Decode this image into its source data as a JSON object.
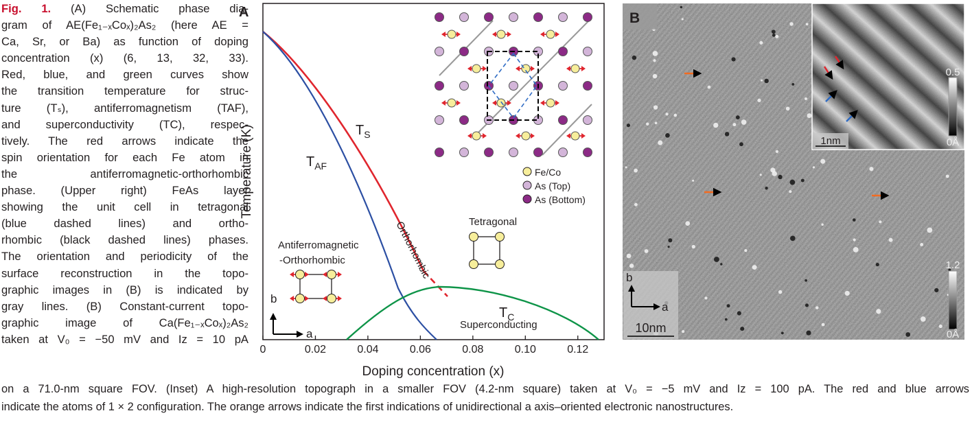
{
  "caption": {
    "label": "Fig. 1.",
    "first_line": "(A) Schematic phase dia-",
    "lines": [
      "gram of AE(Fe₁₋ₓCoₓ)₂As₂ (here AE =",
      "Ca, Sr, or Ba) as function of doping",
      "concentration (x) (6, 13, 32, 33).",
      "Red, blue, and green curves show",
      "the transition temperature for struc-",
      "ture (Tₛ), antiferromagnetism (TAF),",
      "and superconductivity (TC), respec-",
      "tively. The red arrows indicate the",
      "spin orientation for each Fe atom in",
      "the antiferromagnetic-orthorhombic",
      "phase. (Upper right) FeAs layer",
      "showing the unit cell in tetragonal",
      "(blue dashed lines) and ortho-",
      "rhombic (black dashed lines) phases.",
      "The orientation and periodicity of the",
      "surface reconstruction in the topo-",
      "graphic images in (B) is indicated by",
      "gray lines. (B) Constant-current topo-",
      "graphic image of Ca(Fe₁₋ₓCoₓ)₂As₂",
      "taken at V₀ = −50 mV and Iz = 10 pA"
    ],
    "bottom_lines": [
      "on a 71.0-nm square FOV. (Inset) A high-resolution topograph in a smaller FOV (4.2-nm square) taken at V₀ = −5 mV and Iz = 100 pA. The red and blue arrows",
      "indicate the atoms of 1 × 2 configuration. The orange arrows indicate the first indications of unidirectional a axis–oriented electronic nanostructures."
    ]
  },
  "panel_a": {
    "label": "A",
    "xlabel": "Doping concentration (x)",
    "ylabel": "Temperature (K)",
    "xlim": [
      0,
      0.13
    ],
    "xticks": [
      0,
      0.02,
      0.04,
      0.06,
      0.08,
      {
        "value": 0.1,
        "label": "0.10"
      },
      0.12
    ],
    "t_s": {
      "main": "T",
      "sub": "S"
    },
    "t_af": {
      "main": "T",
      "sub": "AF"
    },
    "t_c": {
      "main": "T",
      "sub": "C"
    },
    "orthorhombic": "Orthorhombic",
    "tetragonal": "Tetragonal",
    "afo": [
      "Antiferromagnetic",
      "-Orthorhombic"
    ],
    "superconducting": "Superconducting",
    "legend": [
      "Fe/Co",
      "As (Top)",
      "As (Bottom)"
    ],
    "axis_b": "b",
    "axis_a": "a"
  },
  "panel_b": {
    "label": "B",
    "inset_scale": "1nm",
    "inset_colorbar": [
      "0.5",
      "0Å"
    ],
    "main_colorbar": [
      "1.2",
      "0Å"
    ],
    "scale": "10nm",
    "axis_b": "b",
    "axis_a": "a"
  }
}
